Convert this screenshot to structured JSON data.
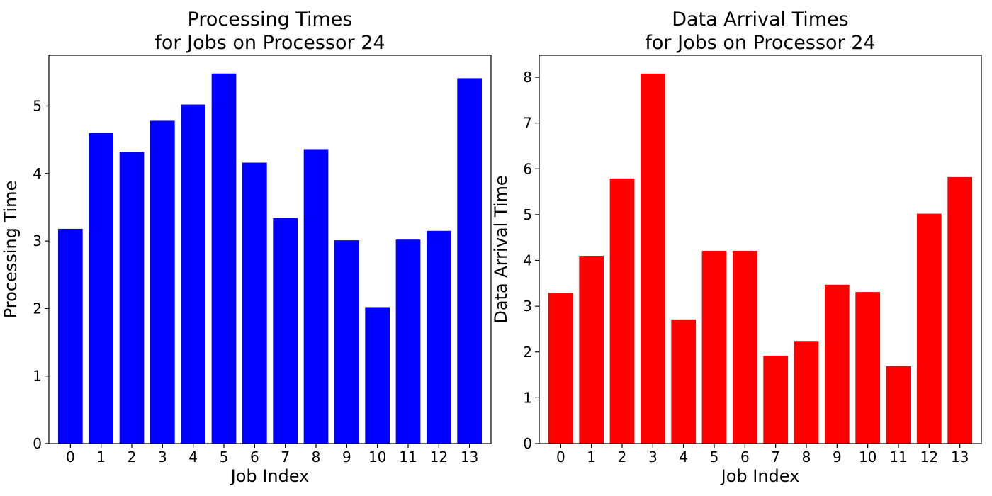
{
  "chart_data": [
    {
      "type": "bar",
      "title": [
        "Processing Times",
        "for Jobs on Processor 24"
      ],
      "xlabel": "Job Index",
      "ylabel": "Processing Time",
      "categories": [
        "0",
        "1",
        "2",
        "3",
        "4",
        "5",
        "6",
        "7",
        "8",
        "9",
        "10",
        "11",
        "12",
        "13"
      ],
      "values": [
        3.18,
        4.6,
        4.32,
        4.78,
        5.02,
        5.48,
        4.16,
        3.34,
        4.36,
        3.01,
        2.02,
        3.02,
        3.15,
        5.41
      ],
      "ylim": [
        0,
        5.75
      ],
      "yticks": [
        0,
        1,
        2,
        3,
        4,
        5
      ],
      "color": "#0000ff",
      "grid": false
    },
    {
      "type": "bar",
      "title": [
        "Data Arrival Times",
        "for Jobs on Processor 24"
      ],
      "xlabel": "Job Index",
      "ylabel": "Data Arrival Time",
      "categories": [
        "0",
        "1",
        "2",
        "3",
        "4",
        "5",
        "6",
        "7",
        "8",
        "9",
        "10",
        "11",
        "12",
        "13"
      ],
      "values": [
        3.29,
        4.1,
        5.79,
        8.08,
        2.71,
        4.21,
        4.21,
        1.92,
        2.24,
        3.47,
        3.31,
        1.69,
        5.02,
        5.82
      ],
      "ylim": [
        0,
        8.48
      ],
      "yticks": [
        0,
        1,
        2,
        3,
        4,
        5,
        6,
        7,
        8
      ],
      "color": "#ff0000",
      "grid": false
    }
  ]
}
